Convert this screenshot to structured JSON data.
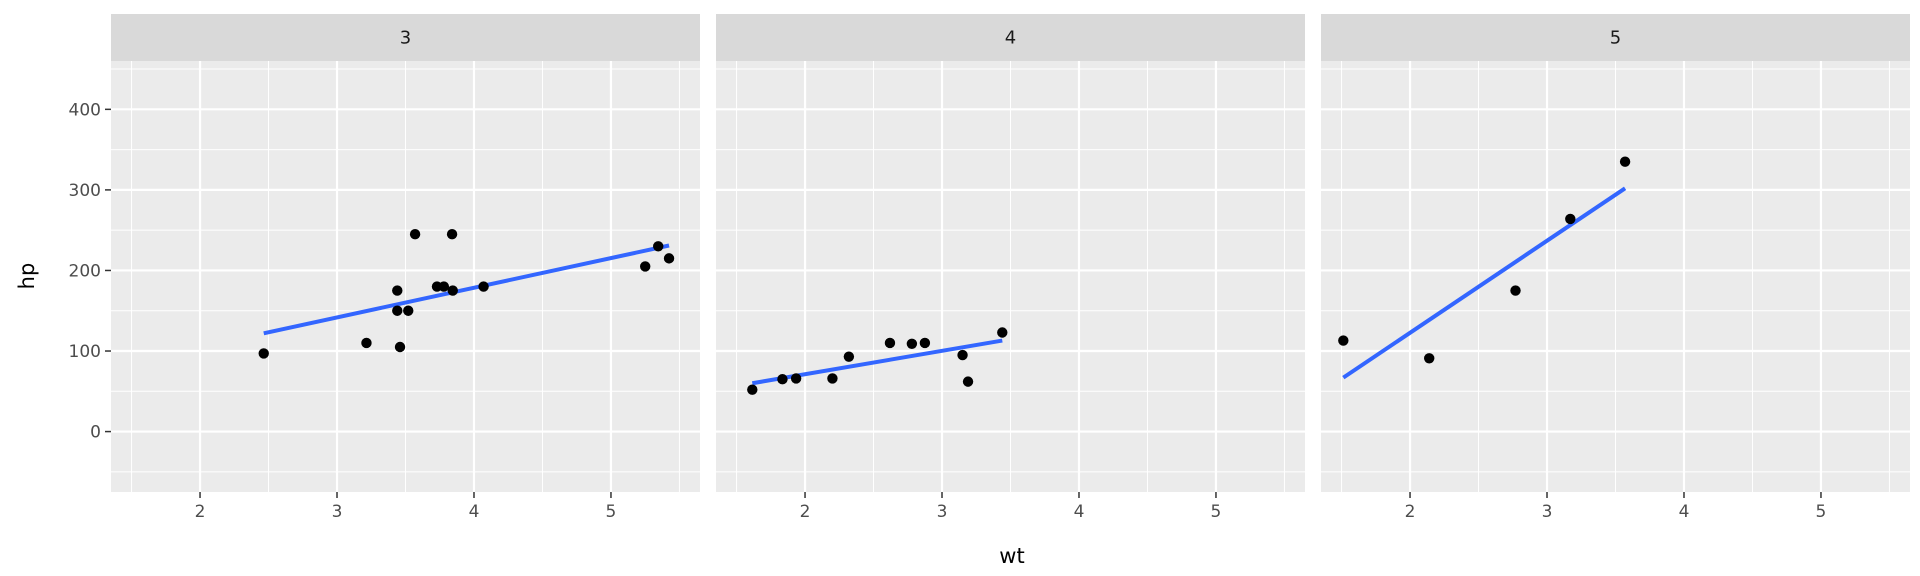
{
  "chart_data": {
    "type": "scatter",
    "xlabel": "wt",
    "ylabel": "hp",
    "xlim": [
      1.35,
      5.65
    ],
    "ylim": [
      -75,
      460
    ],
    "x_ticks": [
      2,
      3,
      4,
      5
    ],
    "y_ticks": [
      0,
      100,
      200,
      300,
      400
    ],
    "x_tick_labels": [
      "2",
      "3",
      "4",
      "5"
    ],
    "y_tick_labels": [
      "0",
      "100",
      "200",
      "300",
      "400"
    ],
    "grid": true,
    "legend": "none",
    "colors": {
      "panel": "#ebebeb",
      "strip": "#d9d9d9",
      "grid": "#ffffff",
      "point": "#000000",
      "fit_line": "#3366ff"
    },
    "facets": [
      {
        "label": "3",
        "points": [
          {
            "x": 2.465,
            "y": 97
          },
          {
            "x": 3.215,
            "y": 110
          },
          {
            "x": 3.44,
            "y": 175
          },
          {
            "x": 3.46,
            "y": 105
          },
          {
            "x": 3.44,
            "y": 150
          },
          {
            "x": 3.52,
            "y": 150
          },
          {
            "x": 3.57,
            "y": 245
          },
          {
            "x": 3.73,
            "y": 180
          },
          {
            "x": 3.78,
            "y": 180
          },
          {
            "x": 3.84,
            "y": 245
          },
          {
            "x": 3.845,
            "y": 175
          },
          {
            "x": 4.07,
            "y": 180
          },
          {
            "x": 5.25,
            "y": 205
          },
          {
            "x": 5.345,
            "y": 230
          },
          {
            "x": 5.424,
            "y": 215
          }
        ],
        "fit": {
          "x": [
            2.465,
            5.424
          ],
          "y": [
            122,
            231
          ]
        }
      },
      {
        "label": "4",
        "points": [
          {
            "x": 1.615,
            "y": 52
          },
          {
            "x": 1.835,
            "y": 65
          },
          {
            "x": 1.935,
            "y": 66
          },
          {
            "x": 2.2,
            "y": 66
          },
          {
            "x": 2.32,
            "y": 93
          },
          {
            "x": 2.62,
            "y": 110
          },
          {
            "x": 2.78,
            "y": 109
          },
          {
            "x": 2.875,
            "y": 110
          },
          {
            "x": 3.15,
            "y": 95
          },
          {
            "x": 3.19,
            "y": 62
          },
          {
            "x": 3.44,
            "y": 123
          }
        ],
        "fit": {
          "x": [
            1.615,
            3.44
          ],
          "y": [
            60,
            113
          ]
        }
      },
      {
        "label": "5",
        "points": [
          {
            "x": 1.513,
            "y": 113
          },
          {
            "x": 2.14,
            "y": 91
          },
          {
            "x": 2.77,
            "y": 175
          },
          {
            "x": 3.17,
            "y": 264
          },
          {
            "x": 3.57,
            "y": 335
          }
        ],
        "fit": {
          "x": [
            1.513,
            3.57
          ],
          "y": [
            67,
            302
          ]
        }
      }
    ]
  }
}
